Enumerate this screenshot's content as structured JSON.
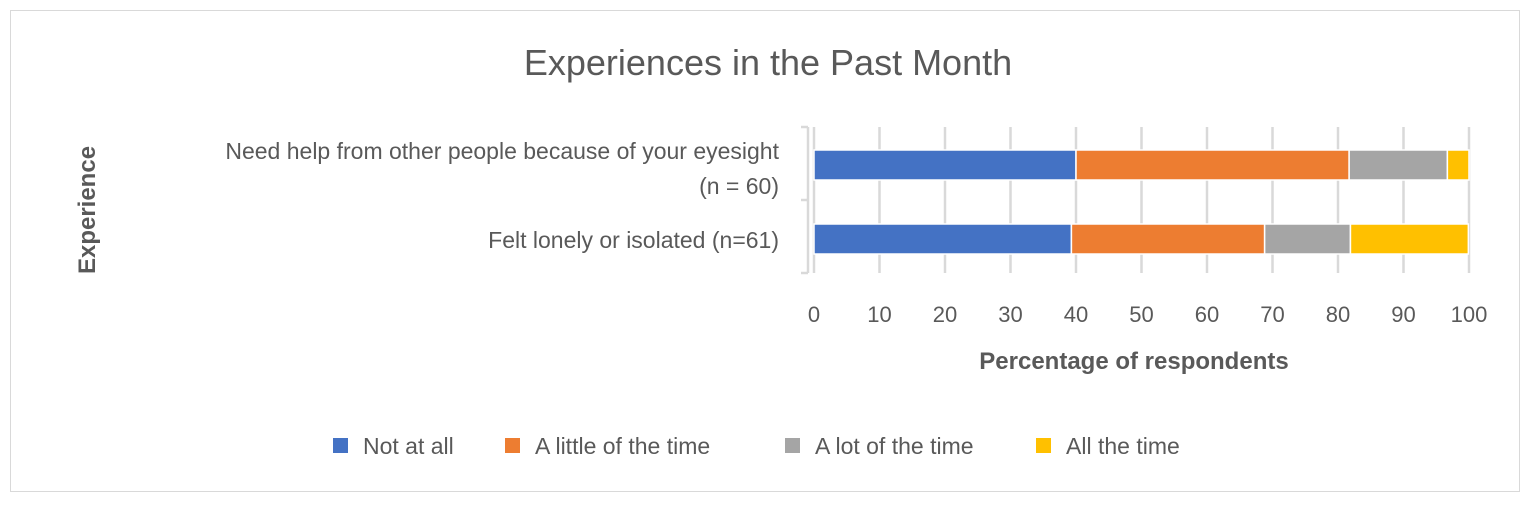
{
  "chart_data": {
    "type": "bar",
    "orientation": "horizontal",
    "stacked": true,
    "title": "Experiences in the Past Month",
    "xlabel": "Percentage of respondents",
    "ylabel": "Experience",
    "xlim": [
      0,
      100
    ],
    "xticks": [
      "0",
      "10",
      "20",
      "30",
      "40",
      "50",
      "60",
      "70",
      "80",
      "90",
      "100"
    ],
    "grid": true,
    "legend_position": "bottom",
    "categories": [
      {
        "line1": "Need help from other people because of your eyesight",
        "line2": "(n = 60)"
      },
      {
        "line1": "Felt lonely or isolated (n=61)",
        "line2": ""
      }
    ],
    "series": [
      {
        "name": "Not at all",
        "color": "#4472c4",
        "values": [
          40.0,
          39.3
        ]
      },
      {
        "name": "A little of the time",
        "color": "#ed7d31",
        "values": [
          41.7,
          29.5
        ]
      },
      {
        "name": "A lot of the time",
        "color": "#a5a5a5",
        "values": [
          15.0,
          13.1
        ]
      },
      {
        "name": "All the time",
        "color": "#ffc000",
        "values": [
          3.3,
          18.0
        ]
      }
    ]
  }
}
